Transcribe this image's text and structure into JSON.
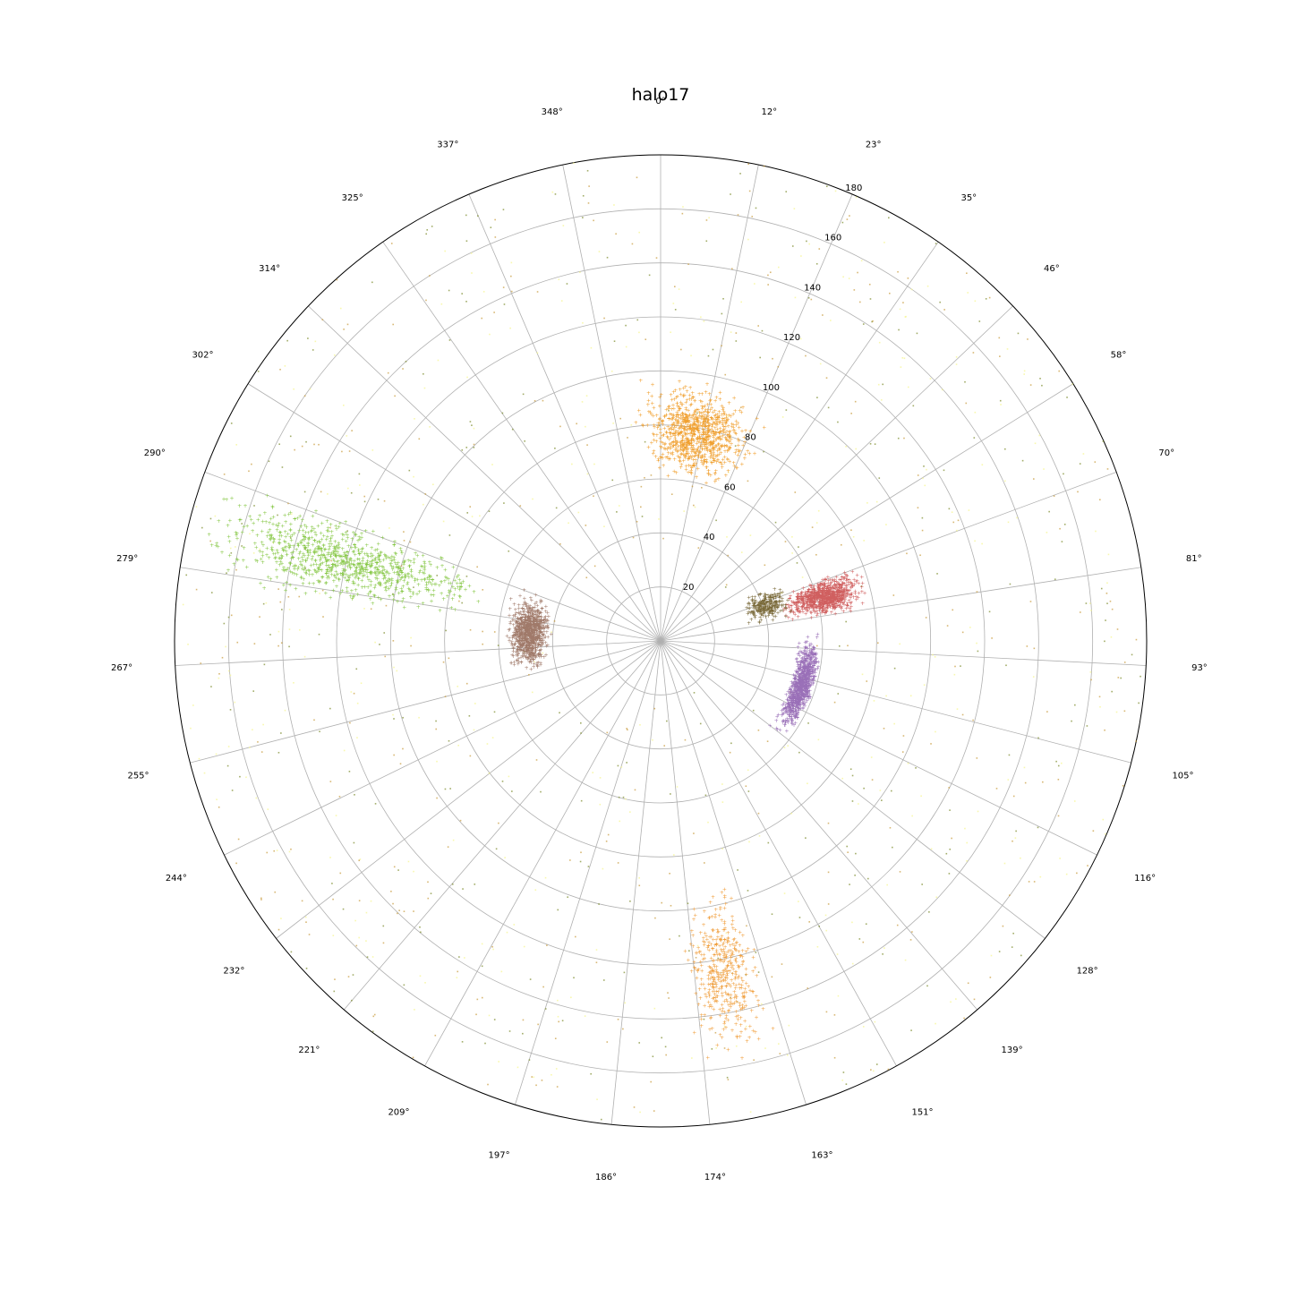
{
  "chart_data": {
    "type": "scatter",
    "projection": "polar",
    "title": "halo17",
    "theta_zero": "top",
    "theta_direction": "clockwise",
    "theta_ticks": [
      "0°",
      "12°",
      "23°",
      "35°",
      "46°",
      "58°",
      "70°",
      "81°",
      "93°",
      "105°",
      "116°",
      "128°",
      "139°",
      "151°",
      "163°",
      "174°",
      "186°",
      "197°",
      "209°",
      "221°",
      "232°",
      "244°",
      "255°",
      "267°",
      "279°",
      "290°",
      "302°",
      "314°",
      "325°",
      "337°",
      "348°"
    ],
    "r_ticks": [
      "20",
      "40",
      "60",
      "80",
      "100",
      "120",
      "140",
      "160",
      "180"
    ],
    "r_tick_values": [
      20,
      40,
      60,
      80,
      100,
      120,
      140,
      160,
      180
    ],
    "rlim": [
      0,
      180
    ],
    "grid": true,
    "legend": "none",
    "background_colors": [
      "#f5f58c",
      "#7a8a2a",
      "#c89a3a"
    ],
    "clusters": [
      {
        "theta_range": [
          -8,
          28
        ],
        "r_range": [
          58,
          98
        ],
        "color": "#f0a030",
        "density": "dense"
      },
      {
        "theta_range": [
          68,
          82
        ],
        "r_range": [
          45,
          80
        ],
        "color": "#d06060",
        "density": "dense"
      },
      {
        "theta_range": [
          62,
          82
        ],
        "r_range": [
          30,
          52
        ],
        "color": "#7a6a3a",
        "density": "medium"
      },
      {
        "theta_range": [
          85,
          130
        ],
        "r_range": [
          50,
          60
        ],
        "color": "#9a70b8",
        "density": "dense"
      },
      {
        "theta_range": [
          255,
          292
        ],
        "r_range": [
          40,
          58
        ],
        "color": "#a07a6a",
        "density": "dense"
      },
      {
        "theta_range": [
          276,
          292
        ],
        "r_range": [
          60,
          180
        ],
        "color": "#88c848",
        "density": "dense"
      },
      {
        "theta_range": [
          162,
          176
        ],
        "r_range": [
          90,
          160
        ],
        "color": "#f0a040",
        "density": "sparse"
      }
    ]
  }
}
